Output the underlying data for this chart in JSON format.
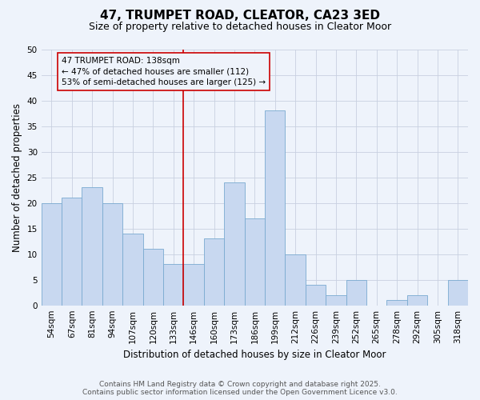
{
  "title": "47, TRUMPET ROAD, CLEATOR, CA23 3ED",
  "subtitle": "Size of property relative to detached houses in Cleator Moor",
  "xlabel": "Distribution of detached houses by size in Cleator Moor",
  "ylabel": "Number of detached properties",
  "footer_line1": "Contains HM Land Registry data © Crown copyright and database right 2025.",
  "footer_line2": "Contains public sector information licensed under the Open Government Licence v3.0.",
  "categories": [
    "54sqm",
    "67sqm",
    "81sqm",
    "94sqm",
    "107sqm",
    "120sqm",
    "133sqm",
    "146sqm",
    "160sqm",
    "173sqm",
    "186sqm",
    "199sqm",
    "212sqm",
    "226sqm",
    "239sqm",
    "252sqm",
    "265sqm",
    "278sqm",
    "292sqm",
    "305sqm",
    "318sqm"
  ],
  "values": [
    20,
    21,
    23,
    20,
    14,
    11,
    8,
    8,
    13,
    24,
    17,
    38,
    10,
    4,
    2,
    5,
    0,
    1,
    2,
    0,
    5
  ],
  "bar_color": "#c8d8f0",
  "bar_edge_color": "#7aaad0",
  "grid_color": "#c8d0e0",
  "vline_color": "#cc0000",
  "annotation_line1": "47 TRUMPET ROAD: 138sqm",
  "annotation_line2": "← 47% of detached houses are smaller (112)",
  "annotation_line3": "53% of semi-detached houses are larger (125) →",
  "annotation_box_color": "#cc0000",
  "ylim": [
    0,
    50
  ],
  "yticks": [
    0,
    5,
    10,
    15,
    20,
    25,
    30,
    35,
    40,
    45,
    50
  ],
  "bg_color": "#eef3fb",
  "title_fontsize": 11,
  "subtitle_fontsize": 9,
  "axis_label_fontsize": 8.5,
  "tick_fontsize": 7.5,
  "annotation_fontsize": 7.5,
  "footer_fontsize": 6.5,
  "vline_bin_index": 6
}
